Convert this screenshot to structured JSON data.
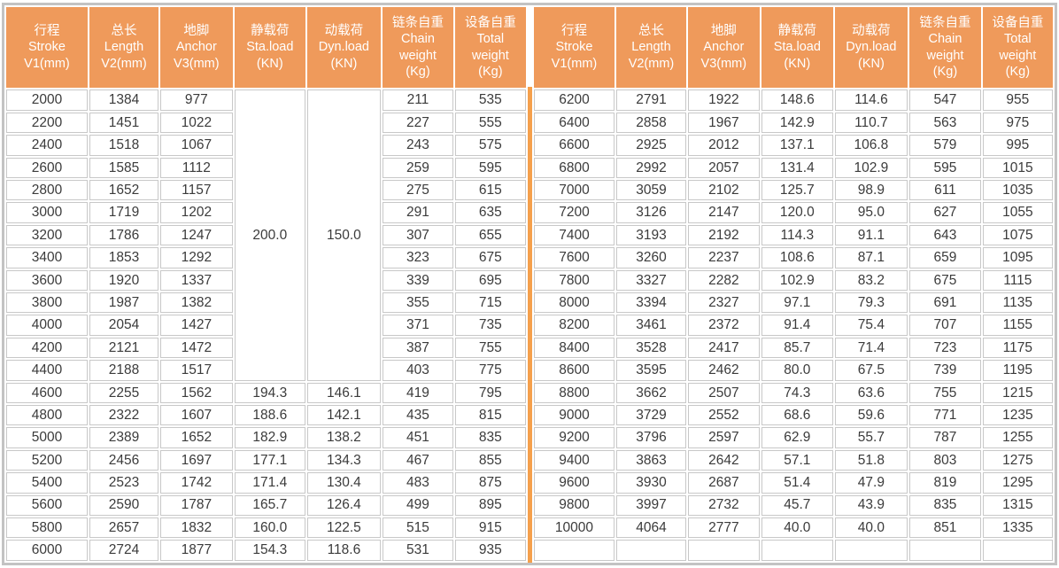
{
  "colors": {
    "header_bg": "#EF9A5B",
    "header_text": "#FFFFFF",
    "grid_line": "#C8C8C8",
    "outer_frame": "#C3C3C3",
    "half_divider": "#F5A04C",
    "cell_text": "#3B3B3B"
  },
  "table": {
    "headers": [
      "行程\nStroke\nV1(mm)",
      "总长\nLength\nV2(mm)",
      "地脚\nAnchor\nV3(mm)",
      "静载荷\nSta.load\n(KN)",
      "动载荷\nDyn.load\n(KN)",
      "链条自重\nChain\nweight\n(Kg)",
      "设备自重\nTotal\nweight\n(Kg)"
    ],
    "left": {
      "merged": {
        "rows": 13,
        "sta_load": "200.0",
        "dyn_load": "150.0"
      },
      "rows": [
        [
          "2000",
          "1384",
          "977",
          null,
          null,
          "211",
          "535"
        ],
        [
          "2200",
          "1451",
          "1022",
          null,
          null,
          "227",
          "555"
        ],
        [
          "2400",
          "1518",
          "1067",
          null,
          null,
          "243",
          "575"
        ],
        [
          "2600",
          "1585",
          "1112",
          null,
          null,
          "259",
          "595"
        ],
        [
          "2800",
          "1652",
          "1157",
          null,
          null,
          "275",
          "615"
        ],
        [
          "3000",
          "1719",
          "1202",
          null,
          null,
          "291",
          "635"
        ],
        [
          "3200",
          "1786",
          "1247",
          null,
          null,
          "307",
          "655"
        ],
        [
          "3400",
          "1853",
          "1292",
          null,
          null,
          "323",
          "675"
        ],
        [
          "3600",
          "1920",
          "1337",
          null,
          null,
          "339",
          "695"
        ],
        [
          "3800",
          "1987",
          "1382",
          null,
          null,
          "355",
          "715"
        ],
        [
          "4000",
          "2054",
          "1427",
          null,
          null,
          "371",
          "735"
        ],
        [
          "4200",
          "2121",
          "1472",
          null,
          null,
          "387",
          "755"
        ],
        [
          "4400",
          "2188",
          "1517",
          null,
          null,
          "403",
          "775"
        ],
        [
          "4600",
          "2255",
          "1562",
          "194.3",
          "146.1",
          "419",
          "795"
        ],
        [
          "4800",
          "2322",
          "1607",
          "188.6",
          "142.1",
          "435",
          "815"
        ],
        [
          "5000",
          "2389",
          "1652",
          "182.9",
          "138.2",
          "451",
          "835"
        ],
        [
          "5200",
          "2456",
          "1697",
          "177.1",
          "134.3",
          "467",
          "855"
        ],
        [
          "5400",
          "2523",
          "1742",
          "171.4",
          "130.4",
          "483",
          "875"
        ],
        [
          "5600",
          "2590",
          "1787",
          "165.7",
          "126.4",
          "499",
          "895"
        ],
        [
          "5800",
          "2657",
          "1832",
          "160.0",
          "122.5",
          "515",
          "915"
        ],
        [
          "6000",
          "2724",
          "1877",
          "154.3",
          "118.6",
          "531",
          "935"
        ]
      ]
    },
    "right": {
      "merged": null,
      "rows": [
        [
          "6200",
          "2791",
          "1922",
          "148.6",
          "114.6",
          "547",
          "955"
        ],
        [
          "6400",
          "2858",
          "1967",
          "142.9",
          "110.7",
          "563",
          "975"
        ],
        [
          "6600",
          "2925",
          "2012",
          "137.1",
          "106.8",
          "579",
          "995"
        ],
        [
          "6800",
          "2992",
          "2057",
          "131.4",
          "102.9",
          "595",
          "1015"
        ],
        [
          "7000",
          "3059",
          "2102",
          "125.7",
          "98.9",
          "611",
          "1035"
        ],
        [
          "7200",
          "3126",
          "2147",
          "120.0",
          "95.0",
          "627",
          "1055"
        ],
        [
          "7400",
          "3193",
          "2192",
          "114.3",
          "91.1",
          "643",
          "1075"
        ],
        [
          "7600",
          "3260",
          "2237",
          "108.6",
          "87.1",
          "659",
          "1095"
        ],
        [
          "7800",
          "3327",
          "2282",
          "102.9",
          "83.2",
          "675",
          "1115"
        ],
        [
          "8000",
          "3394",
          "2327",
          "97.1",
          "79.3",
          "691",
          "1135"
        ],
        [
          "8200",
          "3461",
          "2372",
          "91.4",
          "75.4",
          "707",
          "1155"
        ],
        [
          "8400",
          "3528",
          "2417",
          "85.7",
          "71.4",
          "723",
          "1175"
        ],
        [
          "8600",
          "3595",
          "2462",
          "80.0",
          "67.5",
          "739",
          "1195"
        ],
        [
          "8800",
          "3662",
          "2507",
          "74.3",
          "63.6",
          "755",
          "1215"
        ],
        [
          "9000",
          "3729",
          "2552",
          "68.6",
          "59.6",
          "771",
          "1235"
        ],
        [
          "9200",
          "3796",
          "2597",
          "62.9",
          "55.7",
          "787",
          "1255"
        ],
        [
          "9400",
          "3863",
          "2642",
          "57.1",
          "51.8",
          "803",
          "1275"
        ],
        [
          "9600",
          "3930",
          "2687",
          "51.4",
          "47.9",
          "819",
          "1295"
        ],
        [
          "9800",
          "3997",
          "2732",
          "45.7",
          "43.9",
          "835",
          "1315"
        ],
        [
          "10000",
          "4064",
          "2777",
          "40.0",
          "40.0",
          "851",
          "1335"
        ],
        [
          "",
          "",
          "",
          "",
          "",
          "",
          ""
        ]
      ]
    }
  }
}
